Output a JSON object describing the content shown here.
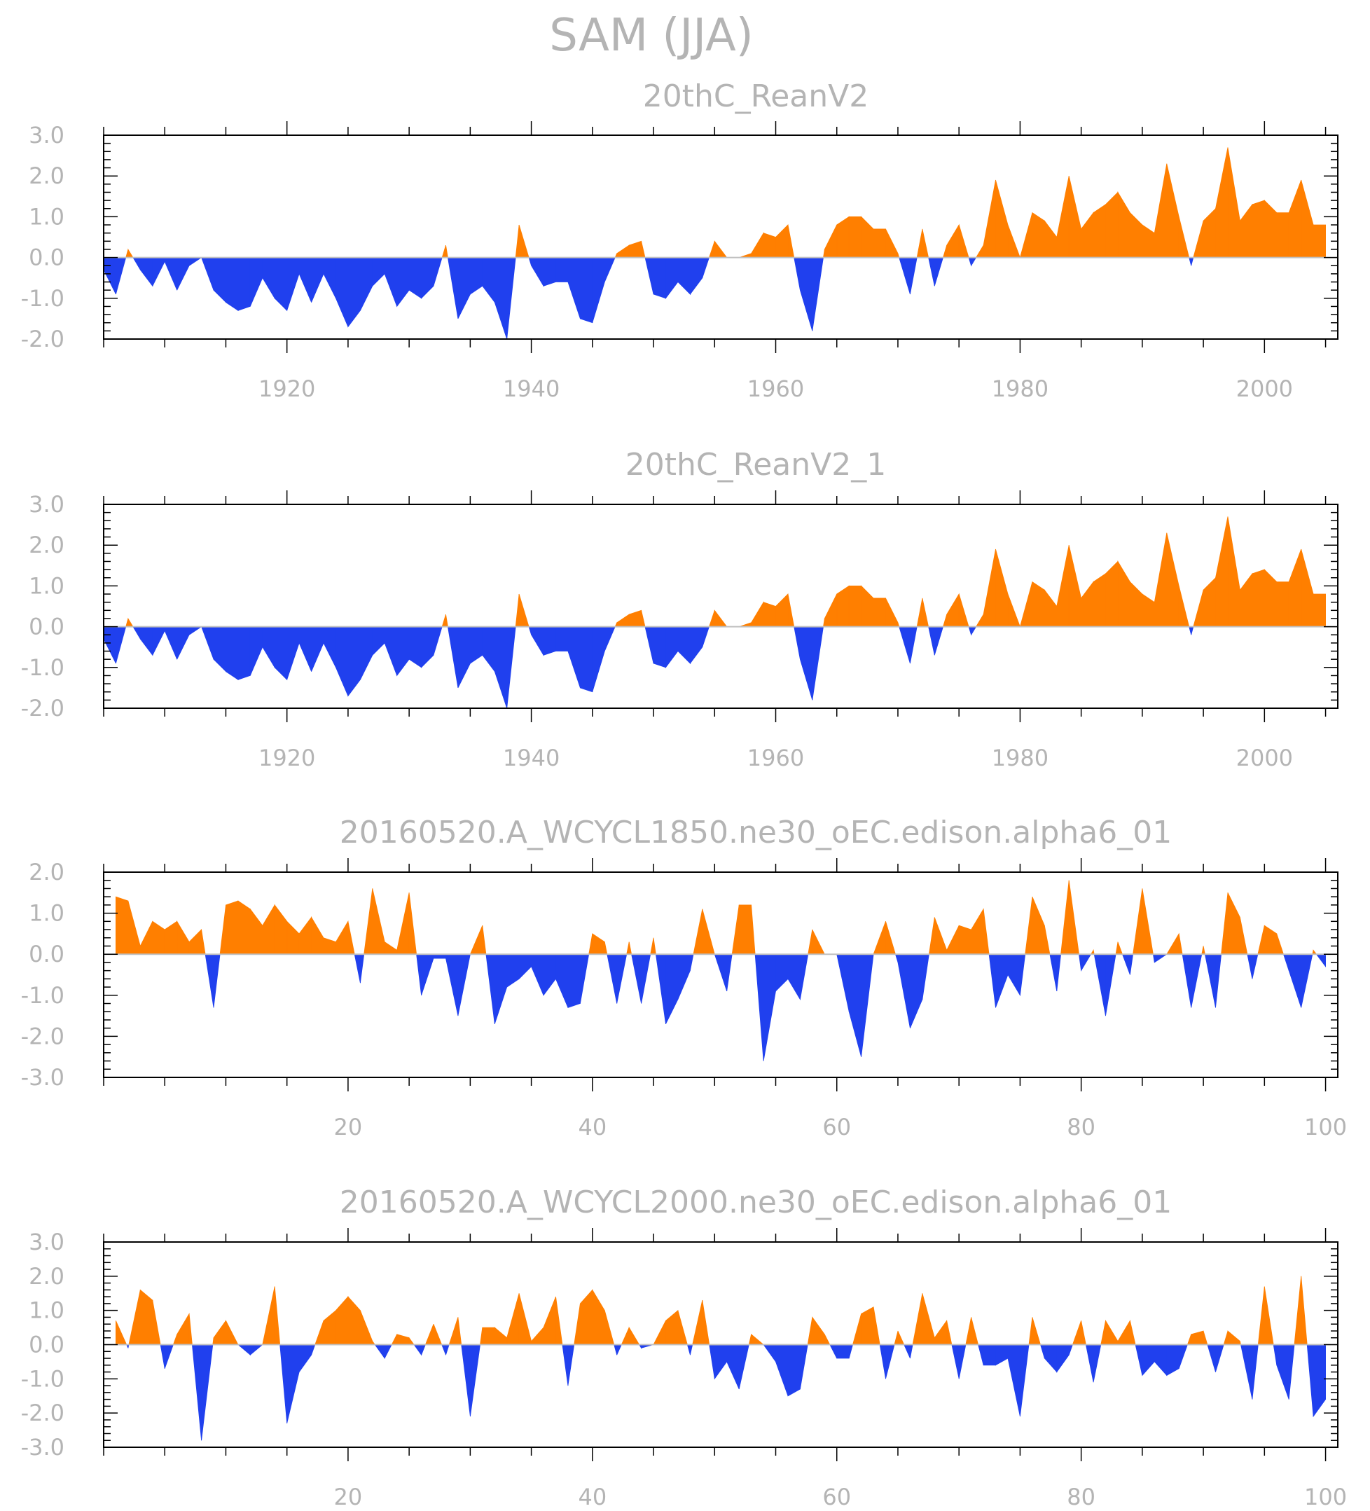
{
  "title": "SAM (JJA)",
  "colors": {
    "positive": "#ff7f00",
    "negative": "#2040ee",
    "text": "#b4b4b4"
  },
  "chart_data": [
    {
      "type": "area",
      "title": "20thC_ReanV2",
      "xlim": [
        1905,
        2006
      ],
      "ylim": [
        -2.0,
        3.0
      ],
      "yticks": [
        "-2.0",
        "-1.0",
        "0.0",
        "1.0",
        "2.0",
        "3.0"
      ],
      "xticks": [
        "1920",
        "1940",
        "1960",
        "1980",
        "2000"
      ],
      "x": [
        1905,
        1906,
        1907,
        1908,
        1909,
        1910,
        1911,
        1912,
        1913,
        1914,
        1915,
        1916,
        1917,
        1918,
        1919,
        1920,
        1921,
        1922,
        1923,
        1924,
        1925,
        1926,
        1927,
        1928,
        1929,
        1930,
        1931,
        1932,
        1933,
        1934,
        1935,
        1936,
        1937,
        1938,
        1939,
        1940,
        1941,
        1942,
        1943,
        1944,
        1945,
        1946,
        1947,
        1948,
        1949,
        1950,
        1951,
        1952,
        1953,
        1954,
        1955,
        1956,
        1957,
        1958,
        1959,
        1960,
        1961,
        1962,
        1963,
        1964,
        1965,
        1966,
        1967,
        1968,
        1969,
        1970,
        1971,
        1972,
        1973,
        1974,
        1975,
        1976,
        1977,
        1978,
        1979,
        1980,
        1981,
        1982,
        1983,
        1984,
        1985,
        1986,
        1987,
        1988,
        1989,
        1990,
        1991,
        1992,
        1993,
        1994,
        1995,
        1996,
        1997,
        1998,
        1999,
        2000,
        2001,
        2002,
        2003,
        2004,
        2005
      ],
      "values": [
        -0.3,
        -0.9,
        0.2,
        -0.3,
        -0.7,
        -0.1,
        -0.8,
        -0.2,
        0.0,
        -0.8,
        -1.1,
        -1.3,
        -1.2,
        -0.5,
        -1.0,
        -1.3,
        -0.4,
        -1.1,
        -0.4,
        -1.0,
        -1.7,
        -1.3,
        -0.7,
        -0.4,
        -1.2,
        -0.8,
        -1.0,
        -0.7,
        0.3,
        -1.5,
        -0.9,
        -0.7,
        -1.1,
        -2.0,
        0.8,
        -0.2,
        -0.7,
        -0.6,
        -0.6,
        -1.5,
        -1.6,
        -0.6,
        0.1,
        0.3,
        0.4,
        -0.9,
        -1.0,
        -0.6,
        -0.9,
        -0.5,
        0.4,
        0.0,
        0.0,
        0.1,
        0.6,
        0.5,
        0.8,
        -0.8,
        -1.8,
        0.2,
        0.8,
        1.0,
        1.0,
        0.7,
        0.7,
        0.1,
        -0.9,
        0.7,
        -0.7,
        0.3,
        0.8,
        -0.2,
        0.3,
        1.9,
        0.8,
        0.0,
        1.1,
        0.9,
        0.5,
        2.0,
        0.7,
        1.1,
        1.3,
        1.6,
        1.1,
        0.8,
        0.6,
        2.3,
        1.0,
        -0.2,
        0.9,
        1.2,
        2.7,
        0.9,
        1.3,
        1.4,
        1.1,
        1.1,
        1.9,
        0.8,
        0.8
      ]
    },
    {
      "type": "area",
      "title": "20thC_ReanV2_1",
      "xlim": [
        1905,
        2006
      ],
      "ylim": [
        -2.0,
        3.0
      ],
      "yticks": [
        "-2.0",
        "-1.0",
        "0.0",
        "1.0",
        "2.0",
        "3.0"
      ],
      "xticks": [
        "1920",
        "1940",
        "1960",
        "1980",
        "2000"
      ],
      "x": [
        1905,
        1906,
        1907,
        1908,
        1909,
        1910,
        1911,
        1912,
        1913,
        1914,
        1915,
        1916,
        1917,
        1918,
        1919,
        1920,
        1921,
        1922,
        1923,
        1924,
        1925,
        1926,
        1927,
        1928,
        1929,
        1930,
        1931,
        1932,
        1933,
        1934,
        1935,
        1936,
        1937,
        1938,
        1939,
        1940,
        1941,
        1942,
        1943,
        1944,
        1945,
        1946,
        1947,
        1948,
        1949,
        1950,
        1951,
        1952,
        1953,
        1954,
        1955,
        1956,
        1957,
        1958,
        1959,
        1960,
        1961,
        1962,
        1963,
        1964,
        1965,
        1966,
        1967,
        1968,
        1969,
        1970,
        1971,
        1972,
        1973,
        1974,
        1975,
        1976,
        1977,
        1978,
        1979,
        1980,
        1981,
        1982,
        1983,
        1984,
        1985,
        1986,
        1987,
        1988,
        1989,
        1990,
        1991,
        1992,
        1993,
        1994,
        1995,
        1996,
        1997,
        1998,
        1999,
        2000,
        2001,
        2002,
        2003,
        2004,
        2005
      ],
      "values": [
        -0.3,
        -0.9,
        0.2,
        -0.3,
        -0.7,
        -0.1,
        -0.8,
        -0.2,
        0.0,
        -0.8,
        -1.1,
        -1.3,
        -1.2,
        -0.5,
        -1.0,
        -1.3,
        -0.4,
        -1.1,
        -0.4,
        -1.0,
        -1.7,
        -1.3,
        -0.7,
        -0.4,
        -1.2,
        -0.8,
        -1.0,
        -0.7,
        0.3,
        -1.5,
        -0.9,
        -0.7,
        -1.1,
        -2.0,
        0.8,
        -0.2,
        -0.7,
        -0.6,
        -0.6,
        -1.5,
        -1.6,
        -0.6,
        0.1,
        0.3,
        0.4,
        -0.9,
        -1.0,
        -0.6,
        -0.9,
        -0.5,
        0.4,
        0.0,
        0.0,
        0.1,
        0.6,
        0.5,
        0.8,
        -0.8,
        -1.8,
        0.2,
        0.8,
        1.0,
        1.0,
        0.7,
        0.7,
        0.1,
        -0.9,
        0.7,
        -0.7,
        0.3,
        0.8,
        -0.2,
        0.3,
        1.9,
        0.8,
        0.0,
        1.1,
        0.9,
        0.5,
        2.0,
        0.7,
        1.1,
        1.3,
        1.6,
        1.1,
        0.8,
        0.6,
        2.3,
        1.0,
        -0.2,
        0.9,
        1.2,
        2.7,
        0.9,
        1.3,
        1.4,
        1.1,
        1.1,
        1.9,
        0.8,
        0.8
      ]
    },
    {
      "type": "area",
      "title": "20160520.A_WCYCL1850.ne30_oEC.edison.alpha6_01",
      "xlim": [
        0,
        101
      ],
      "ylim": [
        -3.0,
        2.0
      ],
      "yticks": [
        "-3.0",
        "-2.0",
        "-1.0",
        "0.0",
        "1.0",
        "2.0"
      ],
      "xticks": [
        "20",
        "40",
        "60",
        "80",
        "100"
      ],
      "x": [
        1,
        2,
        3,
        4,
        5,
        6,
        7,
        8,
        9,
        10,
        11,
        12,
        13,
        14,
        15,
        16,
        17,
        18,
        19,
        20,
        21,
        22,
        23,
        24,
        25,
        26,
        27,
        28,
        29,
        30,
        31,
        32,
        33,
        34,
        35,
        36,
        37,
        38,
        39,
        40,
        41,
        42,
        43,
        44,
        45,
        46,
        47,
        48,
        49,
        50,
        51,
        52,
        53,
        54,
        55,
        56,
        57,
        58,
        59,
        60,
        61,
        62,
        63,
        64,
        65,
        66,
        67,
        68,
        69,
        70,
        71,
        72,
        73,
        74,
        75,
        76,
        77,
        78,
        79,
        80,
        81,
        82,
        83,
        84,
        85,
        86,
        87,
        88,
        89,
        90,
        91,
        92,
        93,
        94,
        95,
        96,
        97,
        98,
        99,
        100
      ],
      "values": [
        1.4,
        1.3,
        0.2,
        0.8,
        0.6,
        0.8,
        0.3,
        0.6,
        -1.3,
        1.2,
        1.3,
        1.1,
        0.7,
        1.2,
        0.8,
        0.5,
        0.9,
        0.4,
        0.3,
        0.8,
        -0.7,
        1.6,
        0.3,
        0.1,
        1.5,
        -1.0,
        -0.1,
        -0.1,
        -1.5,
        0.0,
        0.7,
        -1.7,
        -0.8,
        -0.6,
        -0.3,
        -1.0,
        -0.6,
        -1.3,
        -1.2,
        0.5,
        0.3,
        -1.2,
        0.3,
        -1.2,
        0.4,
        -1.7,
        -1.1,
        -0.4,
        1.1,
        0.0,
        -0.9,
        1.2,
        1.2,
        -2.6,
        -0.9,
        -0.6,
        -1.1,
        0.6,
        0.0,
        0.0,
        -1.4,
        -2.5,
        0.0,
        0.8,
        -0.2,
        -1.8,
        -1.1,
        0.9,
        0.1,
        0.7,
        0.6,
        1.1,
        -1.3,
        -0.5,
        -1.0,
        1.4,
        0.7,
        -0.9,
        1.8,
        -0.4,
        0.1,
        -1.5,
        0.3,
        -0.5,
        1.6,
        -0.2,
        0.0,
        0.5,
        -1.3,
        0.2,
        -1.3,
        1.5,
        0.9,
        -0.6,
        0.7,
        0.5,
        -0.4,
        -1.3,
        0.1,
        -0.3
      ]
    },
    {
      "type": "area",
      "title": "20160520.A_WCYCL2000.ne30_oEC.edison.alpha6_01",
      "xlim": [
        0,
        101
      ],
      "ylim": [
        -3.0,
        3.0
      ],
      "yticks": [
        "-3.0",
        "-2.0",
        "-1.0",
        "0.0",
        "1.0",
        "2.0",
        "3.0"
      ],
      "xticks": [
        "20",
        "40",
        "60",
        "80",
        "100"
      ],
      "x": [
        1,
        2,
        3,
        4,
        5,
        6,
        7,
        8,
        9,
        10,
        11,
        12,
        13,
        14,
        15,
        16,
        17,
        18,
        19,
        20,
        21,
        22,
        23,
        24,
        25,
        26,
        27,
        28,
        29,
        30,
        31,
        32,
        33,
        34,
        35,
        36,
        37,
        38,
        39,
        40,
        41,
        42,
        43,
        44,
        45,
        46,
        47,
        48,
        49,
        50,
        51,
        52,
        53,
        54,
        55,
        56,
        57,
        58,
        59,
        60,
        61,
        62,
        63,
        64,
        65,
        66,
        67,
        68,
        69,
        70,
        71,
        72,
        73,
        74,
        75,
        76,
        77,
        78,
        79,
        80,
        81,
        82,
        83,
        84,
        85,
        86,
        87,
        88,
        89,
        90,
        91,
        92,
        93,
        94,
        95,
        96,
        97,
        98,
        99,
        100
      ],
      "values": [
        0.7,
        -0.1,
        1.6,
        1.3,
        -0.7,
        0.3,
        0.9,
        -2.8,
        0.2,
        0.7,
        0.0,
        -0.3,
        0.0,
        1.7,
        -2.3,
        -0.8,
        -0.3,
        0.7,
        1.0,
        1.4,
        1.0,
        0.1,
        -0.4,
        0.3,
        0.2,
        -0.3,
        0.6,
        -0.3,
        0.8,
        -2.1,
        0.5,
        0.5,
        0.2,
        1.5,
        0.1,
        0.5,
        1.4,
        -1.2,
        1.2,
        1.6,
        1.0,
        -0.3,
        0.5,
        -0.1,
        0.0,
        0.7,
        1.0,
        -0.3,
        1.3,
        -1.0,
        -0.5,
        -1.3,
        0.3,
        0.0,
        -0.5,
        -1.5,
        -1.3,
        0.8,
        0.3,
        -0.4,
        -0.4,
        0.9,
        1.1,
        -1.0,
        0.4,
        -0.4,
        1.5,
        0.2,
        0.7,
        -1.0,
        0.8,
        -0.6,
        -0.6,
        -0.4,
        -2.1,
        0.8,
        -0.4,
        -0.8,
        -0.3,
        0.7,
        -1.1,
        0.7,
        0.1,
        0.7,
        -0.9,
        -0.5,
        -0.9,
        -0.7,
        0.3,
        0.4,
        -0.8,
        0.4,
        0.1,
        -1.6,
        1.7,
        -0.6,
        -1.6,
        2.0,
        -2.1,
        -1.6
      ]
    }
  ]
}
